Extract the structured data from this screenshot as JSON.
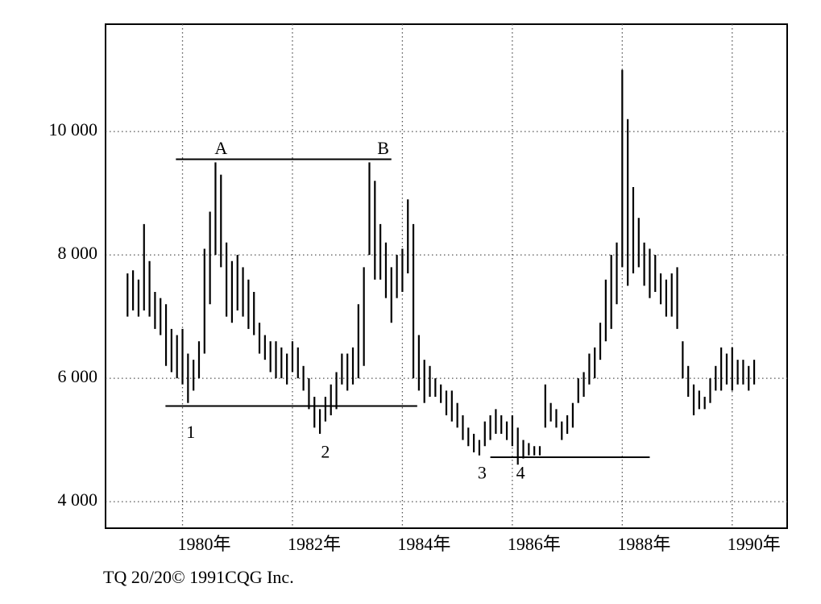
{
  "chart_data": {
    "type": "range-bar",
    "footer": "TQ 20/20© 1991CQG Inc.",
    "xlim": [
      1978.6,
      1991.0
    ],
    "ylim": [
      3570,
      11740
    ],
    "xticks": [
      {
        "value": 1980,
        "label": "1980年"
      },
      {
        "value": 1982,
        "label": "1982年"
      },
      {
        "value": 1984,
        "label": "1984年"
      },
      {
        "value": 1986,
        "label": "1986年"
      },
      {
        "value": 1988,
        "label": "1988年"
      },
      {
        "value": 1990,
        "label": "1990年"
      }
    ],
    "yticks": [
      {
        "value": 4000,
        "label": "4 000"
      },
      {
        "value": 6000,
        "label": "6 000"
      },
      {
        "value": 8000,
        "label": "8 000"
      },
      {
        "value": 10000,
        "label": "10 000"
      }
    ],
    "grid": true,
    "series": [
      {
        "color": "#000000",
        "x": [
          1979.0,
          1979.1,
          1979.2,
          1979.3,
          1979.4,
          1979.5,
          1979.6,
          1979.7,
          1979.8,
          1979.9,
          1980.0,
          1980.1,
          1980.2,
          1980.3,
          1980.4,
          1980.5,
          1980.6,
          1980.7,
          1980.8,
          1980.9,
          1981.0,
          1981.1,
          1981.2,
          1981.3,
          1981.4,
          1981.5,
          1981.6,
          1981.7,
          1981.8,
          1981.9,
          1982.0,
          1982.1,
          1982.2,
          1982.3,
          1982.4,
          1982.5,
          1982.6,
          1982.7,
          1982.8,
          1982.9,
          1983.0,
          1983.1,
          1983.2,
          1983.3,
          1983.4,
          1983.5,
          1983.6,
          1983.7,
          1983.8,
          1983.9,
          1984.0,
          1984.1,
          1984.2,
          1984.3,
          1984.4,
          1984.5,
          1984.6,
          1984.7,
          1984.8,
          1984.9,
          1985.0,
          1985.1,
          1985.2,
          1985.3,
          1985.4,
          1985.5,
          1985.6,
          1985.7,
          1985.8,
          1985.9,
          1986.0,
          1986.1,
          1986.2,
          1986.3,
          1986.4,
          1986.5,
          1986.6,
          1986.7,
          1986.8,
          1986.9,
          1987.0,
          1987.1,
          1987.2,
          1987.3,
          1987.4,
          1987.5,
          1987.6,
          1987.7,
          1987.8,
          1987.9,
          1988.0,
          1988.1,
          1988.2,
          1988.3,
          1988.4,
          1988.5,
          1988.6,
          1988.7,
          1988.8,
          1988.9,
          1989.0,
          1989.1,
          1989.2,
          1989.3,
          1989.4,
          1989.5,
          1989.6,
          1989.7,
          1989.8,
          1989.9,
          1990.0,
          1990.1,
          1990.2,
          1990.3,
          1990.4
        ],
        "high": [
          7700,
          7750,
          7600,
          8500,
          7900,
          7400,
          7300,
          7200,
          6800,
          6700,
          6800,
          6400,
          6300,
          6600,
          8100,
          8700,
          9500,
          9300,
          8200,
          7900,
          8000,
          7800,
          7600,
          7400,
          6900,
          6700,
          6600,
          6600,
          6500,
          6400,
          6600,
          6500,
          6200,
          6000,
          5700,
          5500,
          5700,
          5900,
          6100,
          6400,
          6400,
          6500,
          7200,
          7800,
          9500,
          9200,
          8500,
          8200,
          7800,
          8000,
          8100,
          8900,
          8500,
          6700,
          6300,
          6200,
          6000,
          5900,
          5800,
          5800,
          5600,
          5400,
          5200,
          5100,
          5000,
          5300,
          5400,
          5500,
          5400,
          5300,
          5400,
          5200,
          5000,
          4950,
          4900,
          4900,
          5900,
          5600,
          5500,
          5300,
          5400,
          5600,
          6000,
          6100,
          6400,
          6500,
          6900,
          7600,
          8000,
          8200,
          11000,
          10200,
          9100,
          8600,
          8200,
          8100,
          8000,
          7700,
          7600,
          7700,
          7800,
          6600,
          6200,
          5900,
          5800,
          5700,
          6000,
          6200,
          6500,
          6400,
          6500,
          6300,
          6300,
          6200,
          6300
        ],
        "low": [
          7000,
          7100,
          7000,
          7100,
          7000,
          6800,
          6700,
          6200,
          6100,
          6000,
          5900,
          5600,
          5800,
          6000,
          6400,
          7200,
          8000,
          7800,
          7000,
          6900,
          7100,
          7000,
          6800,
          6700,
          6400,
          6300,
          6100,
          6000,
          6000,
          5900,
          6100,
          6000,
          5800,
          5500,
          5200,
          5100,
          5300,
          5400,
          5500,
          5900,
          5800,
          5900,
          6000,
          6200,
          8000,
          7600,
          7600,
          7300,
          6900,
          7300,
          7400,
          7700,
          6000,
          5800,
          5600,
          5700,
          5700,
          5600,
          5400,
          5300,
          5200,
          5000,
          4900,
          4800,
          4750,
          4900,
          5000,
          5100,
          5100,
          5000,
          4900,
          4600,
          4700,
          4750,
          4750,
          4750,
          5200,
          5300,
          5200,
          5000,
          5100,
          5200,
          5600,
          5700,
          5900,
          6000,
          6300,
          6600,
          6800,
          7200,
          7800,
          7500,
          7700,
          7800,
          7500,
          7300,
          7400,
          7200,
          7000,
          7000,
          6800,
          6000,
          5700,
          5400,
          5500,
          5500,
          5600,
          5800,
          5800,
          5900,
          5800,
          5900,
          5900,
          5800,
          5900
        ]
      }
    ],
    "reference_lines": [
      {
        "y": 9550,
        "x": [
          1979.88,
          1983.8
        ]
      },
      {
        "y": 5550,
        "x": [
          1979.69,
          1984.27
        ]
      },
      {
        "y": 4720,
        "x": [
          1985.6,
          1988.5
        ]
      }
    ],
    "annotations": [
      {
        "text": "A",
        "x": 1980.7,
        "y": 9700
      },
      {
        "text": "B",
        "x": 1983.65,
        "y": 9700
      },
      {
        "text": "1",
        "x": 1980.15,
        "y": 5100
      },
      {
        "text": "2",
        "x": 1982.6,
        "y": 4780
      },
      {
        "text": "3",
        "x": 1985.45,
        "y": 4440
      },
      {
        "text": "4",
        "x": 1986.15,
        "y": 4440
      }
    ]
  }
}
